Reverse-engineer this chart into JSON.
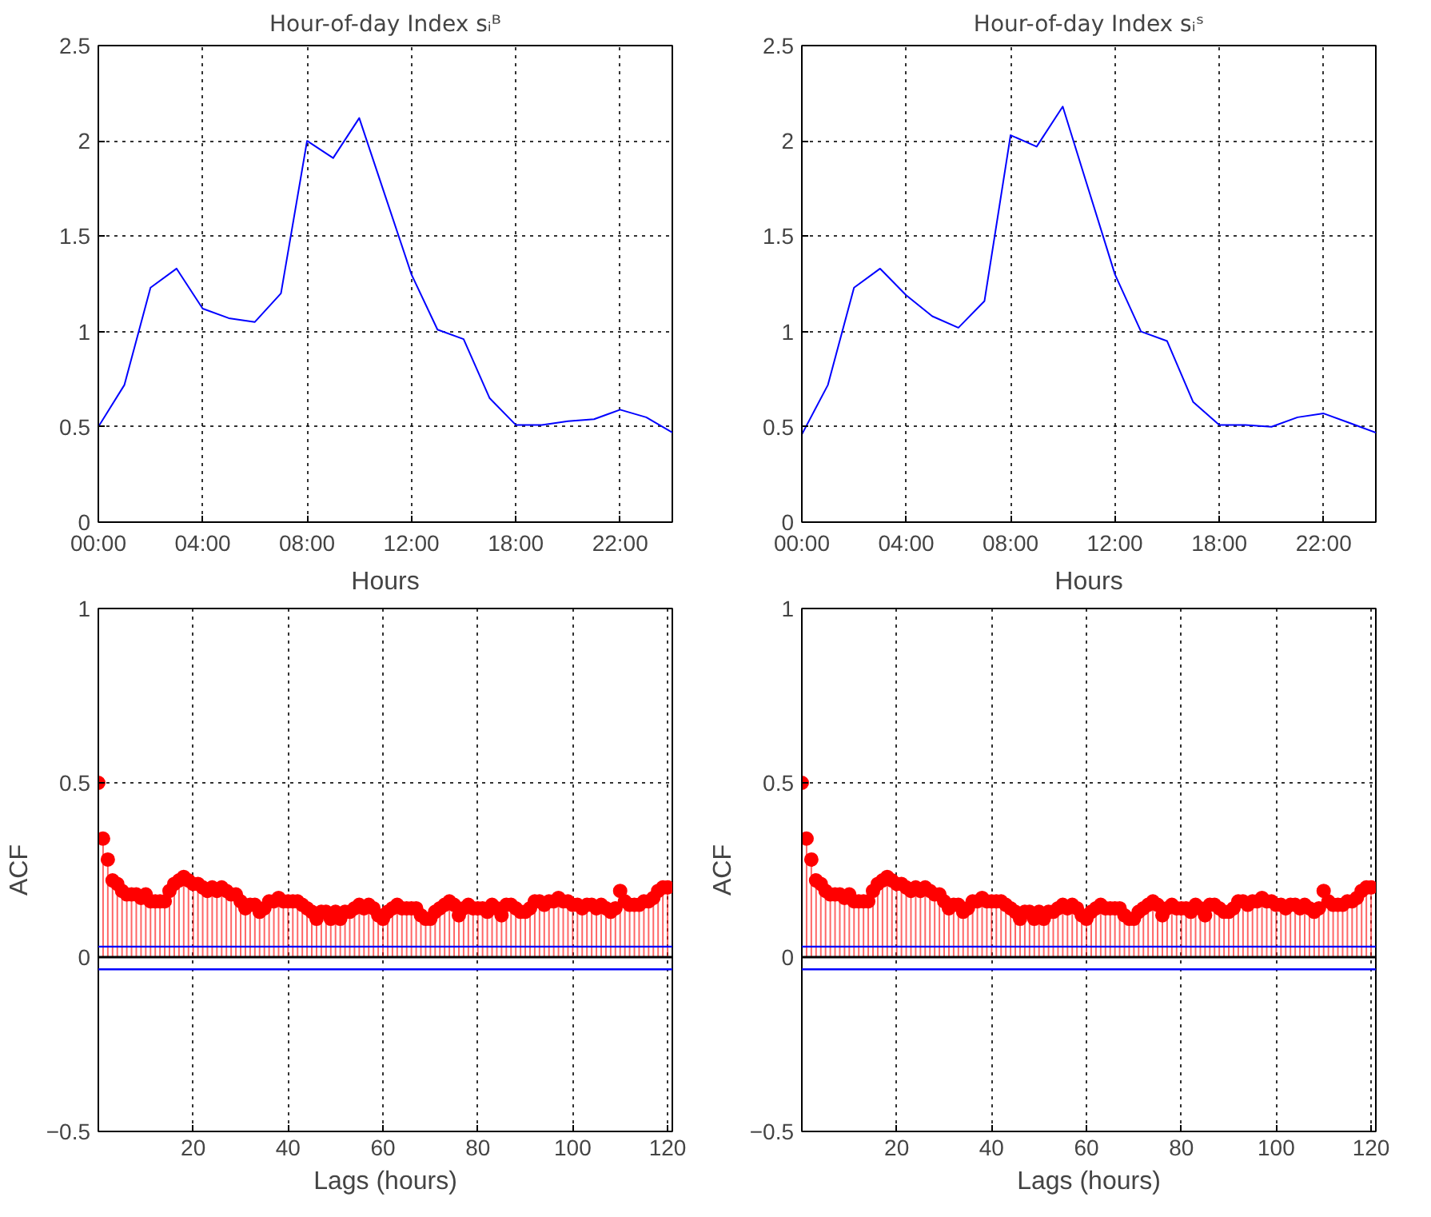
{
  "chart_data": [
    {
      "type": "line",
      "title": "Hour-of-day Index sᵢᴮ",
      "xlabel": "Hours",
      "categories": [
        "00:00",
        null,
        null,
        null,
        "04:00",
        null,
        null,
        null,
        "08:00",
        null,
        null,
        null,
        "12:00",
        null,
        null,
        null,
        "18:00",
        null,
        null,
        null,
        "22:00",
        null,
        null
      ],
      "series": [
        {
          "color": "#0000ff",
          "values": [
            0.5,
            0.72,
            1.23,
            1.33,
            1.12,
            1.07,
            1.05,
            1.2,
            2.0,
            1.91,
            2.12,
            1.71,
            1.3,
            1.01,
            0.96,
            0.65,
            0.51,
            0.51,
            0.53,
            0.54,
            0.59,
            0.55,
            0.47
          ]
        }
      ],
      "ylim": [
        0,
        2.5
      ],
      "yticks": [
        0,
        0.5,
        1,
        1.5,
        2,
        2.5
      ],
      "grid": true,
      "marker": "none",
      "line_style": "solid"
    },
    {
      "type": "line",
      "title": "Hour-of-day Index sᵢˢ",
      "xlabel": "Hours",
      "categories": [
        "00:00",
        null,
        null,
        null,
        "04:00",
        null,
        null,
        null,
        "08:00",
        null,
        null,
        null,
        "12:00",
        null,
        null,
        null,
        "18:00",
        null,
        null,
        null,
        "22:00",
        null,
        null
      ],
      "series": [
        {
          "color": "#0000ff",
          "values": [
            0.46,
            0.72,
            1.23,
            1.33,
            1.19,
            1.08,
            1.02,
            1.16,
            2.03,
            1.97,
            2.18,
            1.74,
            1.3,
            1.0,
            0.95,
            0.63,
            0.51,
            0.51,
            0.5,
            0.55,
            0.57,
            0.52,
            0.47
          ]
        }
      ],
      "ylim": [
        0,
        2.5
      ],
      "yticks": [
        0,
        0.5,
        1,
        1.5,
        2,
        2.5
      ],
      "grid": true,
      "marker": "none",
      "line_style": "solid"
    },
    {
      "type": "lollipop",
      "xlabel": "Lags (hours)",
      "ylabel": "ACF",
      "x": [
        0,
        1,
        2,
        3,
        4,
        5,
        6,
        7,
        8,
        9,
        10,
        11,
        12,
        13,
        14,
        15,
        16,
        17,
        18,
        19,
        20,
        21,
        22,
        23,
        24,
        25,
        26,
        27,
        28,
        29,
        30,
        31,
        32,
        33,
        34,
        35,
        36,
        37,
        38,
        39,
        40,
        41,
        42,
        43,
        44,
        45,
        46,
        47,
        48,
        49,
        50,
        51,
        52,
        53,
        54,
        55,
        56,
        57,
        58,
        59,
        60,
        61,
        62,
        63,
        64,
        65,
        66,
        67,
        68,
        69,
        70,
        71,
        72,
        73,
        74,
        75,
        76,
        77,
        78,
        79,
        80,
        81,
        82,
        83,
        84,
        85,
        86,
        87,
        88,
        89,
        90,
        91,
        92,
        93,
        94,
        95,
        96,
        97,
        98,
        99,
        100,
        101,
        102,
        103,
        104,
        105,
        106,
        107,
        108,
        109,
        110,
        111,
        112,
        113,
        114,
        115,
        116,
        117,
        118,
        119,
        120
      ],
      "series": [
        {
          "color": "#ff0000",
          "values": [
            0.5,
            0.34,
            0.28,
            0.22,
            0.21,
            0.19,
            0.18,
            0.18,
            0.18,
            0.17,
            0.18,
            0.16,
            0.16,
            0.16,
            0.16,
            0.19,
            0.21,
            0.22,
            0.23,
            0.22,
            0.21,
            0.21,
            0.2,
            0.19,
            0.2,
            0.19,
            0.2,
            0.19,
            0.18,
            0.18,
            0.16,
            0.14,
            0.15,
            0.15,
            0.13,
            0.14,
            0.16,
            0.16,
            0.17,
            0.16,
            0.16,
            0.16,
            0.16,
            0.15,
            0.14,
            0.13,
            0.11,
            0.13,
            0.13,
            0.11,
            0.13,
            0.11,
            0.13,
            0.13,
            0.14,
            0.15,
            0.14,
            0.15,
            0.14,
            0.12,
            0.11,
            0.13,
            0.14,
            0.15,
            0.14,
            0.14,
            0.14,
            0.14,
            0.12,
            0.11,
            0.11,
            0.13,
            0.14,
            0.15,
            0.16,
            0.15,
            0.12,
            0.14,
            0.15,
            0.14,
            0.14,
            0.14,
            0.13,
            0.15,
            0.14,
            0.12,
            0.15,
            0.15,
            0.14,
            0.13,
            0.13,
            0.14,
            0.16,
            0.16,
            0.15,
            0.16,
            0.16,
            0.17,
            0.16,
            0.16,
            0.15,
            0.15,
            0.14,
            0.15,
            0.15,
            0.14,
            0.15,
            0.14,
            0.13,
            0.14,
            0.19,
            0.16,
            0.15,
            0.15,
            0.15,
            0.16,
            0.16,
            0.17,
            0.19,
            0.2,
            0.2
          ]
        }
      ],
      "xlim": [
        0,
        121
      ],
      "xticks": [
        20,
        40,
        60,
        80,
        100,
        120
      ],
      "ylim": [
        -0.5,
        1
      ],
      "yticks": [
        -0.5,
        0,
        0.5,
        1
      ],
      "grid": true,
      "marker": "circle",
      "ref_lines": [
        {
          "axis": "y",
          "value": 0.03,
          "color": "#0000ff"
        },
        {
          "axis": "y",
          "value": -0.035,
          "color": "#0000ff"
        }
      ]
    },
    {
      "type": "lollipop",
      "xlabel": "Lags (hours)",
      "ylabel": "ACF",
      "x": [
        0,
        1,
        2,
        3,
        4,
        5,
        6,
        7,
        8,
        9,
        10,
        11,
        12,
        13,
        14,
        15,
        16,
        17,
        18,
        19,
        20,
        21,
        22,
        23,
        24,
        25,
        26,
        27,
        28,
        29,
        30,
        31,
        32,
        33,
        34,
        35,
        36,
        37,
        38,
        39,
        40,
        41,
        42,
        43,
        44,
        45,
        46,
        47,
        48,
        49,
        50,
        51,
        52,
        53,
        54,
        55,
        56,
        57,
        58,
        59,
        60,
        61,
        62,
        63,
        64,
        65,
        66,
        67,
        68,
        69,
        70,
        71,
        72,
        73,
        74,
        75,
        76,
        77,
        78,
        79,
        80,
        81,
        82,
        83,
        84,
        85,
        86,
        87,
        88,
        89,
        90,
        91,
        92,
        93,
        94,
        95,
        96,
        97,
        98,
        99,
        100,
        101,
        102,
        103,
        104,
        105,
        106,
        107,
        108,
        109,
        110,
        111,
        112,
        113,
        114,
        115,
        116,
        117,
        118,
        119,
        120
      ],
      "series": [
        {
          "color": "#ff0000",
          "values": [
            0.5,
            0.34,
            0.28,
            0.22,
            0.21,
            0.19,
            0.18,
            0.18,
            0.18,
            0.17,
            0.18,
            0.16,
            0.16,
            0.16,
            0.16,
            0.19,
            0.21,
            0.22,
            0.23,
            0.22,
            0.21,
            0.21,
            0.2,
            0.19,
            0.2,
            0.19,
            0.2,
            0.19,
            0.18,
            0.18,
            0.16,
            0.14,
            0.15,
            0.15,
            0.13,
            0.14,
            0.16,
            0.16,
            0.17,
            0.16,
            0.16,
            0.16,
            0.16,
            0.15,
            0.14,
            0.13,
            0.11,
            0.13,
            0.13,
            0.11,
            0.13,
            0.11,
            0.13,
            0.13,
            0.14,
            0.15,
            0.14,
            0.15,
            0.14,
            0.12,
            0.11,
            0.13,
            0.14,
            0.15,
            0.14,
            0.14,
            0.14,
            0.14,
            0.12,
            0.11,
            0.11,
            0.13,
            0.14,
            0.15,
            0.16,
            0.15,
            0.12,
            0.14,
            0.15,
            0.14,
            0.14,
            0.14,
            0.13,
            0.15,
            0.14,
            0.12,
            0.15,
            0.15,
            0.14,
            0.13,
            0.13,
            0.14,
            0.16,
            0.16,
            0.15,
            0.16,
            0.16,
            0.17,
            0.16,
            0.16,
            0.15,
            0.15,
            0.14,
            0.15,
            0.15,
            0.14,
            0.15,
            0.14,
            0.13,
            0.14,
            0.19,
            0.16,
            0.15,
            0.15,
            0.15,
            0.16,
            0.16,
            0.17,
            0.19,
            0.2,
            0.2
          ]
        }
      ],
      "xlim": [
        0,
        121
      ],
      "xticks": [
        20,
        40,
        60,
        80,
        100,
        120
      ],
      "ylim": [
        -0.5,
        1
      ],
      "yticks": [
        -0.5,
        0,
        0.5,
        1
      ],
      "grid": true,
      "marker": "circle",
      "ref_lines": [
        {
          "axis": "y",
          "value": 0.03,
          "color": "#0000ff"
        },
        {
          "axis": "y",
          "value": -0.035,
          "color": "#0000ff"
        }
      ]
    }
  ]
}
